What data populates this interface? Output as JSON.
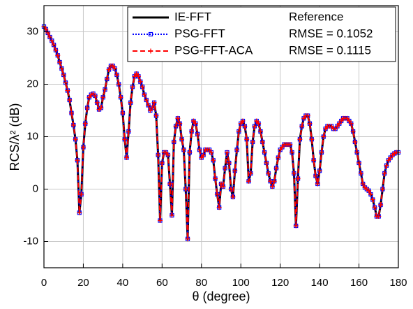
{
  "chart_data": {
    "type": "line",
    "xlabel": "θ (degree)",
    "ylabel": "RCS/λ² (dB)",
    "x": [
      0,
      1,
      2,
      3,
      4,
      5,
      6,
      7,
      8,
      9,
      10,
      11,
      12,
      13,
      14,
      15,
      16,
      17,
      18,
      19,
      20,
      21,
      22,
      23,
      24,
      25,
      26,
      27,
      28,
      29,
      30,
      31,
      32,
      33,
      34,
      35,
      36,
      37,
      38,
      39,
      40,
      41,
      42,
      43,
      44,
      45,
      46,
      47,
      48,
      49,
      50,
      51,
      52,
      53,
      54,
      55,
      56,
      57,
      58,
      59,
      60,
      61,
      62,
      63,
      64,
      65,
      66,
      67,
      68,
      69,
      70,
      71,
      72,
      73,
      74,
      75,
      76,
      77,
      78,
      79,
      80,
      81,
      82,
      83,
      84,
      85,
      86,
      87,
      88,
      89,
      90,
      91,
      92,
      93,
      94,
      95,
      96,
      97,
      98,
      99,
      100,
      101,
      102,
      103,
      104,
      105,
      106,
      107,
      108,
      109,
      110,
      111,
      112,
      113,
      114,
      115,
      116,
      117,
      118,
      119,
      120,
      121,
      122,
      123,
      124,
      125,
      126,
      127,
      128,
      129,
      130,
      131,
      132,
      133,
      134,
      135,
      136,
      137,
      138,
      139,
      140,
      141,
      142,
      143,
      144,
      145,
      146,
      147,
      148,
      149,
      150,
      151,
      152,
      153,
      154,
      155,
      156,
      157,
      158,
      159,
      160,
      161,
      162,
      163,
      164,
      165,
      166,
      167,
      168,
      169,
      170,
      171,
      172,
      173,
      174,
      175,
      176,
      177,
      178,
      179,
      180
    ],
    "series": [
      {
        "name": "IE-FFT",
        "color": "#000000",
        "style": "solid",
        "marker": "none",
        "note": "Reference",
        "values": [
          31,
          30.5,
          29.8,
          29,
          28.3,
          27.5,
          26.5,
          25.5,
          24.2,
          23,
          21.8,
          20.3,
          18.8,
          17,
          14.5,
          12.2,
          9.5,
          5.5,
          -4.5,
          -1,
          8,
          12.5,
          15.5,
          17.5,
          18,
          18.2,
          17.8,
          16.5,
          15.2,
          15.5,
          17.5,
          19,
          21,
          22.8,
          23.5,
          23.5,
          23,
          21.8,
          20,
          17.5,
          14.5,
          9.5,
          6,
          11,
          16.5,
          19.5,
          21.5,
          22,
          21.5,
          20.5,
          19.5,
          18,
          17,
          16,
          15,
          15.5,
          16.5,
          14,
          6.5,
          -6,
          5,
          7,
          7,
          6.5,
          1,
          -5,
          9,
          12,
          13.5,
          12.5,
          9.5,
          7.5,
          0,
          -9.5,
          7,
          11,
          13,
          12.5,
          10.5,
          7.5,
          6,
          6.5,
          7.5,
          7.5,
          7.5,
          7,
          5.5,
          2,
          -1,
          -3.5,
          1,
          0.5,
          4,
          7,
          5,
          0,
          -1.5,
          3.5,
          7.5,
          11,
          12.5,
          13,
          12,
          9.5,
          1.5,
          3,
          9,
          12,
          13,
          12.5,
          11,
          9,
          7,
          5,
          3,
          1.5,
          0.5,
          1.5,
          4,
          6,
          7.5,
          8,
          8.5,
          8.5,
          8.5,
          8.5,
          7,
          3,
          -7,
          2,
          9.5,
          12,
          13.5,
          14,
          14,
          12.5,
          9.5,
          5.5,
          2.5,
          1,
          3.5,
          7,
          10,
          11.5,
          12,
          12,
          12,
          11.5,
          11.5,
          12,
          12.5,
          13,
          13.5,
          13.5,
          13.5,
          13,
          12.5,
          11,
          9,
          7,
          5,
          3,
          1,
          0.3,
          0,
          -0.3,
          -1,
          -2,
          -3.5,
          -5.2,
          -5.2,
          -3,
          0,
          3,
          4.5,
          5.5,
          6,
          6.5,
          6.8,
          7,
          7
        ]
      },
      {
        "name": "PSG-FFT",
        "color": "#0000ff",
        "style": "dotted",
        "marker": "square",
        "note": "RMSE = 0.1052",
        "values": [
          31,
          30.5,
          29.8,
          29,
          28.3,
          27.5,
          26.5,
          25.5,
          24.2,
          23,
          21.8,
          20.3,
          18.8,
          17,
          14.5,
          12.2,
          9.5,
          5.5,
          -4.5,
          -1,
          8,
          12.5,
          15.5,
          17.5,
          18,
          18.2,
          17.8,
          16.5,
          15.2,
          15.5,
          17.5,
          19,
          21,
          22.8,
          23.5,
          23.5,
          23,
          21.8,
          20,
          17.5,
          14.5,
          9.5,
          6,
          11,
          16.5,
          19.5,
          21.5,
          22,
          21.5,
          20.5,
          19.5,
          18,
          17,
          16,
          15,
          15.5,
          16.5,
          14,
          6.5,
          -6,
          5,
          7,
          7,
          6.5,
          1,
          -5,
          9,
          12,
          13.5,
          12.5,
          9.5,
          7.5,
          0,
          -9.5,
          7,
          11,
          13,
          12.5,
          10.5,
          7.5,
          6,
          6.5,
          7.5,
          7.5,
          7.5,
          7,
          5.5,
          2,
          -1,
          -3.5,
          1,
          0.5,
          4,
          7,
          5,
          0,
          -1.5,
          3.5,
          7.5,
          11,
          12.5,
          13,
          12,
          9.5,
          1.5,
          3,
          9,
          12,
          13,
          12.5,
          11,
          9,
          7,
          5,
          3,
          1.5,
          0.5,
          1.5,
          4,
          6,
          7.5,
          8,
          8.5,
          8.5,
          8.5,
          8.5,
          7,
          3,
          -7,
          2,
          9.5,
          12,
          13.5,
          14,
          14,
          12.5,
          9.5,
          5.5,
          2.5,
          1,
          3.5,
          7,
          10,
          11.5,
          12,
          12,
          12,
          11.5,
          11.5,
          12,
          12.5,
          13,
          13.5,
          13.5,
          13.5,
          13,
          12.5,
          11,
          9,
          7,
          5,
          3,
          1,
          0.3,
          0,
          -0.3,
          -1,
          -2,
          -3.5,
          -5.2,
          -5.2,
          -3,
          0,
          3,
          4.5,
          5.5,
          6,
          6.5,
          6.8,
          7,
          7
        ]
      },
      {
        "name": "PSG-FFT-ACA",
        "color": "#ff0000",
        "style": "dashed",
        "marker": "plus",
        "note": "RMSE = 0.1115",
        "values": [
          31,
          30.5,
          29.8,
          29,
          28.3,
          27.5,
          26.5,
          25.5,
          24.2,
          23,
          21.8,
          20.3,
          18.8,
          17,
          14.5,
          12.2,
          9.5,
          5.5,
          -4.5,
          -1,
          8,
          12.5,
          15.5,
          17.5,
          18,
          18.2,
          17.8,
          16.5,
          15.2,
          15.5,
          17.5,
          19,
          21,
          22.8,
          23.5,
          23.5,
          23,
          21.8,
          20,
          17.5,
          14.5,
          9.5,
          6,
          11,
          16.5,
          19.5,
          21.5,
          22,
          21.5,
          20.5,
          19.5,
          18,
          17,
          16,
          15,
          15.5,
          16.5,
          14,
          6.5,
          -6,
          5,
          7,
          7,
          6.5,
          1,
          -5,
          9,
          12,
          13.5,
          12.5,
          9.5,
          7.5,
          0,
          -9.5,
          7,
          11,
          13,
          12.5,
          10.5,
          7.5,
          6,
          6.5,
          7.5,
          7.5,
          7.5,
          7,
          5.5,
          2,
          -1,
          -3.5,
          1,
          0.5,
          4,
          7,
          5,
          0,
          -1.5,
          3.5,
          7.5,
          11,
          12.5,
          13,
          12,
          9.5,
          1.5,
          3,
          9,
          12,
          13,
          12.5,
          11,
          9,
          7,
          5,
          3,
          1.5,
          0.5,
          1.5,
          4,
          6,
          7.5,
          8,
          8.5,
          8.5,
          8.5,
          8.5,
          7,
          3,
          -7,
          2,
          9.5,
          12,
          13.5,
          14,
          14,
          12.5,
          9.5,
          5.5,
          2.5,
          1,
          3.5,
          7,
          10,
          11.5,
          12,
          12,
          12,
          11.5,
          11.5,
          12,
          12.5,
          13,
          13.5,
          13.5,
          13.5,
          13,
          12.5,
          11,
          9,
          7,
          5,
          3,
          1,
          0.3,
          0,
          -0.3,
          -1,
          -2,
          -3.5,
          -5.2,
          -5.2,
          -3,
          0,
          3,
          4.5,
          5.5,
          6,
          6.5,
          6.8,
          7,
          7
        ]
      }
    ],
    "xlim": [
      0,
      180
    ],
    "xticks": [
      0,
      20,
      40,
      60,
      80,
      100,
      120,
      140,
      160,
      180
    ],
    "ylim": [
      -15,
      35
    ],
    "yticks": [
      -10,
      0,
      10,
      20,
      30
    ],
    "grid": true,
    "legend": "upper right"
  }
}
